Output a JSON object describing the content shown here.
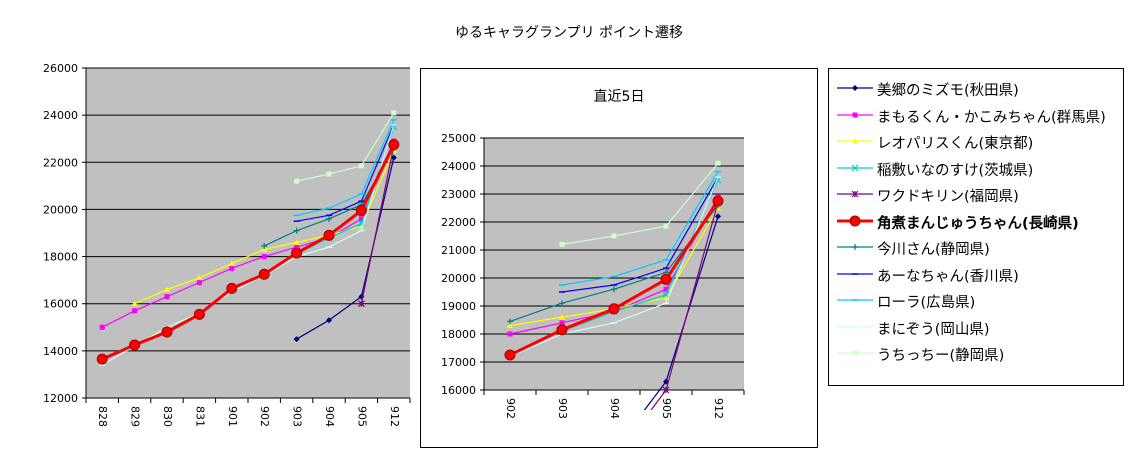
{
  "title": "ゆるキャラグランプリ ポイント遷移",
  "chart_data": [
    {
      "type": "line",
      "categories": [
        "828",
        "829",
        "830",
        "831",
        "901",
        "902",
        "903",
        "904",
        "905",
        "912"
      ],
      "ylim": [
        12000,
        26000
      ],
      "yticks": [
        12000,
        14000,
        16000,
        18000,
        20000,
        22000,
        24000,
        26000
      ],
      "grid": true,
      "legend_position": "right",
      "series": [
        {
          "name": "美郷のミズモ(秋田県)",
          "color": "#000080",
          "marker": "diamond",
          "values": [
            null,
            null,
            null,
            null,
            null,
            null,
            14500,
            15300,
            16300,
            22200
          ]
        },
        {
          "name": "まもるくん・かこみちゃん(群馬県)",
          "color": "#ff00ff",
          "marker": "square",
          "values": [
            15000,
            15700,
            16300,
            16900,
            17500,
            18000,
            18400,
            18800,
            19600,
            22900
          ]
        },
        {
          "name": "レオパリスくん(東京都)",
          "color": "#ffff00",
          "marker": "triangle",
          "values": [
            null,
            16000,
            16600,
            17100,
            17700,
            18300,
            18600,
            18900,
            19300,
            22500
          ]
        },
        {
          "name": "稲敷いなのすけ(茨城県)",
          "color": "#00cccc",
          "marker": "x",
          "values": [
            null,
            null,
            null,
            null,
            null,
            null,
            18100,
            18800,
            19400,
            23500
          ]
        },
        {
          "name": "ワクドキリン(福岡県)",
          "color": "#800080",
          "marker": "star",
          "values": [
            null,
            null,
            null,
            null,
            null,
            null,
            null,
            null,
            16000,
            22700
          ]
        },
        {
          "name": "角煮まんじゅうちゃん(長崎県)",
          "color": "#ff0000",
          "marker": "circle",
          "bold": true,
          "values": [
            13650,
            14250,
            14800,
            15550,
            16650,
            17250,
            18150,
            18900,
            19950,
            22750
          ]
        },
        {
          "name": "今川さん(静岡県)",
          "color": "#008080",
          "marker": "plus",
          "values": [
            null,
            null,
            null,
            null,
            null,
            18450,
            19100,
            19600,
            20200,
            22600
          ]
        },
        {
          "name": "あーなちゃん(香川県)",
          "color": "#0000ff",
          "marker": "dash",
          "values": [
            null,
            null,
            null,
            null,
            null,
            null,
            19500,
            19750,
            20350,
            23600
          ]
        },
        {
          "name": "ローラ(広島県)",
          "color": "#00ccff",
          "marker": "dash",
          "values": [
            null,
            null,
            null,
            null,
            null,
            null,
            19750,
            20050,
            20650,
            23800
          ]
        },
        {
          "name": "まにぞう(岡山県)",
          "color": "#ccffff",
          "marker": "dash",
          "values": [
            13400,
            14200,
            15000,
            15600,
            16500,
            17200,
            18000,
            18400,
            19100,
            23600
          ]
        },
        {
          "name": "うちっちー(静岡県)",
          "color": "#ccffcc",
          "marker": "square",
          "values": [
            null,
            null,
            null,
            null,
            null,
            null,
            21200,
            21500,
            21850,
            24100
          ]
        }
      ]
    },
    {
      "type": "line",
      "title": "直近5日",
      "categories": [
        "902",
        "903",
        "904",
        "905",
        "912"
      ],
      "ylim": [
        16000,
        25000
      ],
      "yticks": [
        16000,
        17000,
        18000,
        19000,
        20000,
        21000,
        22000,
        23000,
        24000,
        25000
      ],
      "grid": true,
      "series": [
        {
          "name": "美郷のミズモ(秋田県)",
          "values": [
            null,
            null,
            null,
            16300,
            22200
          ]
        },
        {
          "name": "まもるくん・かこみちゃん(群馬県)",
          "values": [
            18000,
            18400,
            18800,
            19600,
            22900
          ]
        },
        {
          "name": "レオパリスくん(東京都)",
          "values": [
            18300,
            18600,
            18900,
            19300,
            22500
          ]
        },
        {
          "name": "稲敷いなのすけ(茨城県)",
          "values": [
            null,
            18100,
            18800,
            19400,
            23500
          ]
        },
        {
          "name": "ワクドキリン(福岡県)",
          "values": [
            null,
            null,
            null,
            16000,
            22700
          ]
        },
        {
          "name": "角煮まんじゅうちゃん(長崎県)",
          "values": [
            17250,
            18150,
            18900,
            19950,
            22750
          ]
        },
        {
          "name": "今川さん(静岡県)",
          "values": [
            18450,
            19100,
            19600,
            20200,
            22600
          ]
        },
        {
          "name": "あーなちゃん(香川県)",
          "values": [
            null,
            19500,
            19750,
            20350,
            23600
          ]
        },
        {
          "name": "ローラ(広島県)",
          "values": [
            null,
            19750,
            20050,
            20650,
            23800
          ]
        },
        {
          "name": "まにぞう(岡山県)",
          "values": [
            17200,
            18000,
            18400,
            19100,
            23600
          ]
        },
        {
          "name": "うちっちー(静岡県)",
          "values": [
            null,
            21200,
            21500,
            21850,
            24100
          ]
        }
      ]
    }
  ]
}
